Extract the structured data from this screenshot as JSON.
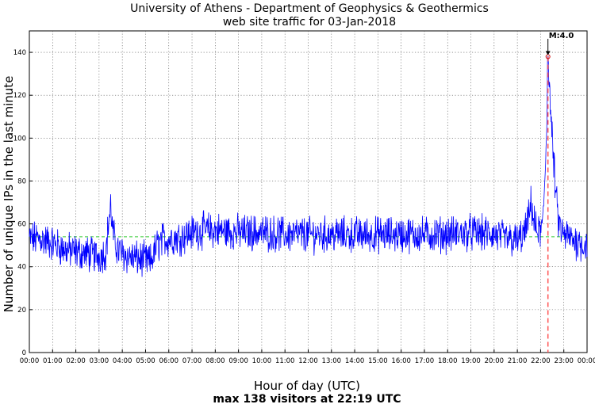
{
  "chart_data": {
    "type": "line",
    "title": "University of Athens - Department of Geophysics & Geothermics",
    "subtitle": "web site traffic for 03-Jan-2018",
    "xlabel": "Hour of day (UTC)",
    "footer": "max 138 visitors at 22:19 UTC",
    "ylabel": "Number of unique IPs in the last minute",
    "xlim_hours": [
      0,
      24
    ],
    "ylim": [
      0,
      150
    ],
    "yticks": [
      0,
      20,
      40,
      60,
      80,
      100,
      120,
      140
    ],
    "xtick_labels": [
      "00:00",
      "01:00",
      "02:00",
      "03:00",
      "04:00",
      "05:00",
      "06:00",
      "07:00",
      "08:00",
      "09:00",
      "10:00",
      "11:00",
      "12:00",
      "13:00",
      "14:00",
      "15:00",
      "16:00",
      "17:00",
      "18:00",
      "19:00",
      "20:00",
      "21:00",
      "22:00",
      "23:00",
      "00:00"
    ],
    "grid": true,
    "mean_line": 54,
    "max": {
      "hour": 22.3167,
      "value": 138
    },
    "event": {
      "hour": 22.3167,
      "label": "M:4.0"
    },
    "series_profile": [
      [
        0,
        53
      ],
      [
        0.5,
        53
      ],
      [
        1,
        51
      ],
      [
        1.5,
        48
      ],
      [
        2,
        47
      ],
      [
        2.5,
        46
      ],
      [
        3,
        45
      ],
      [
        3.3,
        47
      ],
      [
        3.4,
        60
      ],
      [
        3.5,
        68
      ],
      [
        3.6,
        55
      ],
      [
        3.8,
        48
      ],
      [
        4,
        46
      ],
      [
        4.5,
        44
      ],
      [
        5,
        43
      ],
      [
        5.2,
        42
      ],
      [
        5.5,
        50
      ],
      [
        5.8,
        53
      ],
      [
        6,
        53
      ],
      [
        6.5,
        54
      ],
      [
        7,
        56
      ],
      [
        7.5,
        57
      ],
      [
        8,
        57
      ],
      [
        9,
        56
      ],
      [
        10,
        56
      ],
      [
        11,
        55
      ],
      [
        12,
        55
      ],
      [
        13,
        55
      ],
      [
        14,
        55
      ],
      [
        15,
        55
      ],
      [
        16,
        55
      ],
      [
        17,
        55
      ],
      [
        18,
        55
      ],
      [
        19,
        56
      ],
      [
        20,
        55
      ],
      [
        20.5,
        53
      ],
      [
        21,
        52
      ],
      [
        21.3,
        55
      ],
      [
        21.5,
        63
      ],
      [
        21.6,
        70
      ],
      [
        21.7,
        62
      ],
      [
        21.8,
        57
      ],
      [
        22,
        56
      ],
      [
        22.1,
        60
      ],
      [
        22.2,
        85
      ],
      [
        22.3,
        120
      ],
      [
        22.35,
        128
      ],
      [
        22.45,
        110
      ],
      [
        22.55,
        90
      ],
      [
        22.65,
        75
      ],
      [
        22.75,
        62
      ],
      [
        22.9,
        56
      ],
      [
        23,
        55
      ],
      [
        23.5,
        52
      ],
      [
        24,
        50
      ]
    ],
    "line_color": "#0000ff",
    "mean_color": "#33cc33",
    "event_color": "#ff5555"
  }
}
